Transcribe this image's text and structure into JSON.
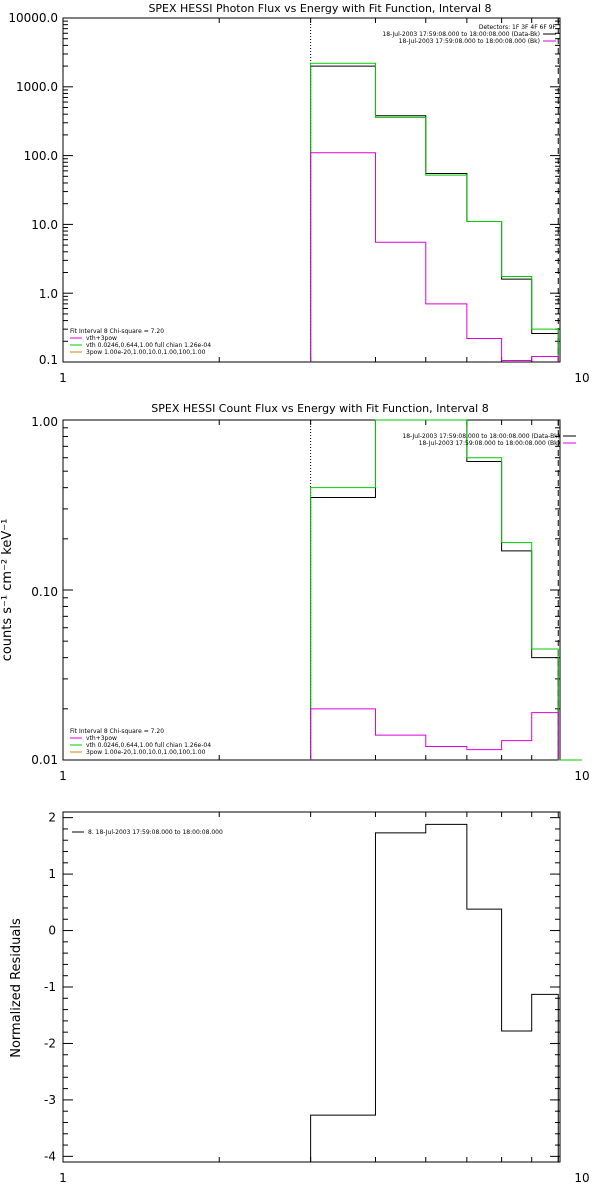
{
  "chart_data": [
    {
      "type": "line",
      "title": "SPEX HESSI Photon Flux vs Energy with Fit Function, Interval 8",
      "xlabel": "",
      "ylabel": "",
      "xscale": "log",
      "yscale": "log",
      "xlim": [
        1,
        10
      ],
      "ylim": [
        0.1,
        10000
      ],
      "x_tick_labels": [
        "1",
        "10"
      ],
      "y_tick_labels": [
        "10000.0",
        "1000.0",
        "100.0",
        "10.0",
        "1.0",
        "0.1"
      ],
      "energy_bin_edges": [
        3.0,
        4.0,
        5.0,
        6.0,
        7.0,
        8.0,
        9.0
      ],
      "series": [
        {
          "color": "#000000",
          "values": [
            2000,
            380,
            55,
            11,
            1.6,
            0.26
          ]
        },
        {
          "color": "#00cc00",
          "values": [
            2200,
            360,
            52,
            11,
            1.75,
            0.3
          ]
        },
        {
          "color": "#dd00dd",
          "values": [
            110,
            5.5,
            0.7,
            0.22,
            0.105,
            0.12
          ]
        }
      ],
      "vertical_lines": [
        {
          "x": 3.0,
          "style": "dotted"
        },
        {
          "x": 9.0,
          "style": "dashed"
        }
      ],
      "legend_top_right": [
        "Detectors: 1F 3F 4F 6F 9F",
        "18-Jul-2003 17:59:08.000 to 18:00:08.000 (Data-Bk)",
        "18-Jul-2003 17:59:08.000 to 18:00:08.000 (Bk)"
      ],
      "legend_bottom_left": [
        {
          "text": "Fit Interval 8    Chi-square = 7.20",
          "color": "#000000"
        },
        {
          "text": "vth+3pow",
          "color": "#dd00dd"
        },
        {
          "text": "vth 0.0246,0.644,1.00   full chian 1.26e-04",
          "color": "#00cc00"
        },
        {
          "text": "3pow 1.00e-20,1.00,10.0,1.00,100,1.00",
          "color": "#cc8800"
        }
      ]
    },
    {
      "type": "line",
      "title": "SPEX HESSI Count Flux vs Energy with Fit Function, Interval 8",
      "xlabel": "",
      "ylabel": "counts s⁻¹ cm⁻² keV⁻¹",
      "xscale": "log",
      "yscale": "log",
      "xlim": [
        1,
        10
      ],
      "ylim": [
        0.01,
        1.0
      ],
      "x_tick_labels": [
        "1",
        "10"
      ],
      "y_tick_labels": [
        "1.00",
        "0.10",
        "0.01"
      ],
      "energy_bin_edges": [
        3.0,
        4.0,
        5.0,
        6.0,
        7.0,
        8.0,
        9.0,
        10.0
      ],
      "series": [
        {
          "color": "#000000",
          "values": [
            0.35,
            1.05,
            1.0,
            0.57,
            0.17,
            0.04
          ]
        },
        {
          "color": "#00cc00",
          "values": [
            0.4,
            1.05,
            1.0,
            0.6,
            0.19,
            0.045,
            0.01
          ]
        },
        {
          "color": "#dd00dd",
          "values": [
            0.02,
            0.014,
            0.012,
            0.0115,
            0.013,
            0.019
          ]
        }
      ],
      "vertical_lines": [
        {
          "x": 3.0,
          "style": "dotted"
        },
        {
          "x": 9.0,
          "style": "dashed"
        }
      ],
      "legend_top_right": [
        "18-Jul-2003 17:59:08.000 to 18:00:08.000 (Data-Bk)",
        "18-Jul-2003 17:59:08.000 to 18:00:08.000 (Bk)"
      ],
      "legend_bottom_left": [
        {
          "text": "Fit Interval 8    Chi-square = 7.20",
          "color": "#000000"
        },
        {
          "text": "vth+3pow",
          "color": "#dd00dd"
        },
        {
          "text": "vth 0.0246,0.644,1.00   full chian 1.26e-04",
          "color": "#00cc00"
        },
        {
          "text": "3pow 1.00e-20,1.00,10.0,1.00,100,1.00",
          "color": "#cc8800"
        }
      ]
    },
    {
      "type": "line",
      "title": "",
      "xlabel": "",
      "ylabel": "Normalized  Residuals",
      "xscale": "log",
      "yscale": "linear",
      "xlim": [
        1,
        10
      ],
      "ylim": [
        -4.1,
        2.1
      ],
      "x_tick_labels": [
        "1",
        "10"
      ],
      "y_tick_labels": [
        "2",
        "1",
        "0",
        "-1",
        "-2",
        "-3",
        "-4"
      ],
      "y_ticks": [
        2,
        1,
        0,
        -1,
        -2,
        -3,
        -4
      ],
      "energy_bin_edges": [
        3.0,
        4.0,
        5.0,
        6.0,
        7.0,
        8.0,
        9.0
      ],
      "series": [
        {
          "color": "#000000",
          "values": [
            -3.27,
            1.73,
            1.88,
            0.38,
            -1.78,
            -1.13
          ]
        }
      ],
      "legend_top_left": [
        {
          "text": "8. 18-Jul-2003 17:59:08.000 to 18:00:08.000",
          "color": "#000000"
        }
      ]
    }
  ]
}
